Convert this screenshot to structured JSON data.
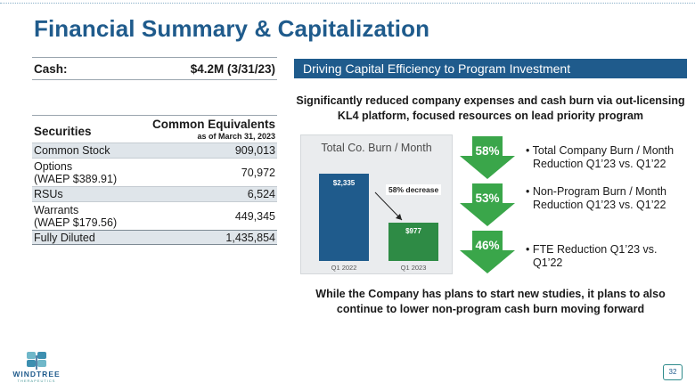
{
  "title": "Financial Summary & Capitalization",
  "cash": {
    "label": "Cash:",
    "value": "$4.2M (3/31/23)"
  },
  "securities": {
    "col1": "Securities",
    "col2": "Common Equivalents",
    "col2_sub": "as of March 31, 2023",
    "rows": [
      {
        "label": "Common Stock",
        "value": "909,013"
      },
      {
        "label_line1": "Options",
        "label_line2": "(WAEP $389.91)",
        "value": "70,972"
      },
      {
        "label": "RSUs",
        "value": "6,524"
      },
      {
        "label_line1": "Warrants",
        "label_line2": "(WAEP $179.56)",
        "value": "449,345"
      },
      {
        "label": "Fully Diluted",
        "value": "1,435,854"
      }
    ]
  },
  "banner": "Driving Capital Efficiency to Program Investment",
  "intro": "Significantly  reduced company expenses and cash burn via out-licensing KL4 platform, focused resources on lead priority  program",
  "chart_data": {
    "type": "bar",
    "title": "Total Co. Burn / Month",
    "categories": [
      "Q1 2022",
      "Q1 2023"
    ],
    "values": [
      2335,
      977
    ],
    "data_labels": [
      "$2,335",
      "$977"
    ],
    "colors": [
      "#1f5b8c",
      "#2e8b45"
    ],
    "annotation": "58% decrease",
    "ylim": [
      0,
      2335
    ]
  },
  "reductions": [
    {
      "pct": "58%",
      "line1": "Total Company Burn / Month",
      "line2": "Reduction Q1’23 vs. Q1’22"
    },
    {
      "pct": "53%",
      "line1": "Non-Program Burn / Month",
      "line2": "Reduction Q1’23 vs. Q1’22"
    },
    {
      "pct": "46%",
      "line1": "FTE Reduction Q1’23 vs.",
      "line2": "Q1’22"
    }
  ],
  "footer_note": "While the Company has plans to start new studies, it plans to also continue to lower non-program cash burn moving forward",
  "logo": {
    "name": "WINDTREE",
    "sub": "THERAPEUTICS"
  },
  "page_number": "32",
  "colors": {
    "brand_blue": "#1f5b8c",
    "green": "#2e8b45",
    "arrow_green": "#3aa64a"
  }
}
